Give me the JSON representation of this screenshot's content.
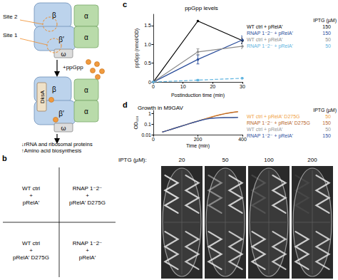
{
  "diagram": {
    "subunits": {
      "beta": "β",
      "beta_prime": "β′",
      "alpha": "α",
      "omega": "ω"
    },
    "sites": [
      "Site 1",
      "Site 2"
    ],
    "ligand": "+ppGpp",
    "factor": "DksA",
    "effects": [
      "↓rRNA and ribosomal proteins",
      "↑Amino acid biosynthesis"
    ]
  },
  "chart_data": [
    {
      "panel": "c",
      "type": "line",
      "title": "ppGpp levels",
      "xlabel": "Postinduction time (min)",
      "ylabel": "ppGpp (nmol/OD)",
      "x": [
        0,
        15,
        30
      ],
      "xlim": [
        0,
        30
      ],
      "xticks": [
        0,
        10,
        20,
        30
      ],
      "ylim": [
        0,
        1.8
      ],
      "yticks": [
        0,
        0.5,
        {
          "value": 1,
          "label": "1.0"
        },
        1.5
      ],
      "grid": false,
      "legend_header": "IPTG (µM)",
      "series": [
        {
          "name": "WT ctrl + pRelA′",
          "iptg": 150,
          "color": "#000000",
          "marker": "circle",
          "line_style": "solid",
          "values": [
            0,
            1.62,
            1.1
          ],
          "errors": [
            null,
            null,
            0.07
          ]
        },
        {
          "name": "RNAP 1⁻2⁻ + pRelA′",
          "iptg": 150,
          "color": "#2a4d9b",
          "marker": "circle",
          "line_style": "solid",
          "values": [
            0,
            0.6,
            1.12
          ],
          "errors": [
            null,
            0.12,
            0.1
          ]
        },
        {
          "name": "WT ctrl + pRelA′",
          "iptg": 50,
          "color": "#8c8c8c",
          "marker": "circle",
          "line_style": "solid",
          "values": [
            0,
            0.8,
            0.95
          ],
          "errors": [
            null,
            0.08,
            0.06
          ]
        },
        {
          "name": "RNAP 1⁻2⁻ + pRelA′",
          "iptg": 50,
          "color": "#5fb4e0",
          "marker": "circle",
          "line_style": "dashed",
          "values": [
            0,
            0.05,
            0.1
          ],
          "errors": [
            null,
            0.02,
            0.02
          ]
        }
      ]
    },
    {
      "panel": "d",
      "type": "line",
      "title": "Growth in M9GAV",
      "xlabel": "Time (min)",
      "ylabel": "OD₆₀₀",
      "log": "y",
      "x": [
        40,
        60,
        80,
        100,
        120,
        140,
        160,
        180,
        200,
        220,
        240,
        260,
        280,
        300,
        320,
        340,
        360,
        380
      ],
      "xlim": [
        0,
        400
      ],
      "xticks": [
        0,
        200,
        400
      ],
      "ylim": [
        0.01,
        2
      ],
      "yticks": [
        0.01,
        0.1,
        1
      ],
      "grid": false,
      "legend_header": "IPTG (µM)",
      "series": [
        {
          "name": "WT ctrl + pRelA′ D275G",
          "iptg": 50,
          "color": "#f0a040",
          "values": [
            0.018,
            0.024,
            0.033,
            0.045,
            0.06,
            0.082,
            0.11,
            0.15,
            0.2,
            0.27,
            0.36,
            0.48,
            0.63,
            0.8,
            1.0,
            1.2,
            1.4,
            1.55
          ]
        },
        {
          "name": "RNAP 1⁻2⁻ + pRelA′ D275G",
          "iptg": 150,
          "color": "#b8662a",
          "values": [
            0.018,
            0.024,
            0.032,
            0.044,
            0.059,
            0.08,
            0.108,
            0.146,
            0.195,
            0.26,
            0.35,
            0.46,
            0.6,
            0.77,
            0.96,
            1.15,
            1.32,
            1.48
          ]
        },
        {
          "name": "WT ctrl + pRelA′",
          "iptg": 50,
          "color": "#999999",
          "values": [
            0.018,
            0.024,
            0.033,
            0.045,
            0.06,
            0.082,
            0.11,
            0.15,
            0.2,
            0.26,
            0.32,
            0.37,
            0.4,
            0.42,
            0.43,
            0.44,
            0.45,
            0.45
          ]
        },
        {
          "name": "RNAP 1⁻2⁻ + pRelA′",
          "iptg": 150,
          "color": "#2f4fa0",
          "values": [
            0.018,
            0.024,
            0.032,
            0.044,
            0.059,
            0.08,
            0.108,
            0.145,
            0.19,
            0.25,
            0.31,
            0.35,
            0.38,
            0.4,
            0.41,
            0.42,
            0.42,
            0.43
          ]
        }
      ]
    }
  ],
  "plates": {
    "panel": "b",
    "header": "IPTG (µM):",
    "iptg": [
      20,
      50,
      100,
      200
    ],
    "strains": [
      [
        "WT ctrl",
        "+",
        "pRelA′"
      ],
      [
        "RNAP 1⁻2⁻",
        "+",
        "pRelA′ D275G"
      ],
      [
        "WT ctrl",
        "+",
        "pRelA′ D275G"
      ],
      [
        "RNAP 1⁻2⁻",
        "+",
        "pRelA′"
      ]
    ]
  }
}
